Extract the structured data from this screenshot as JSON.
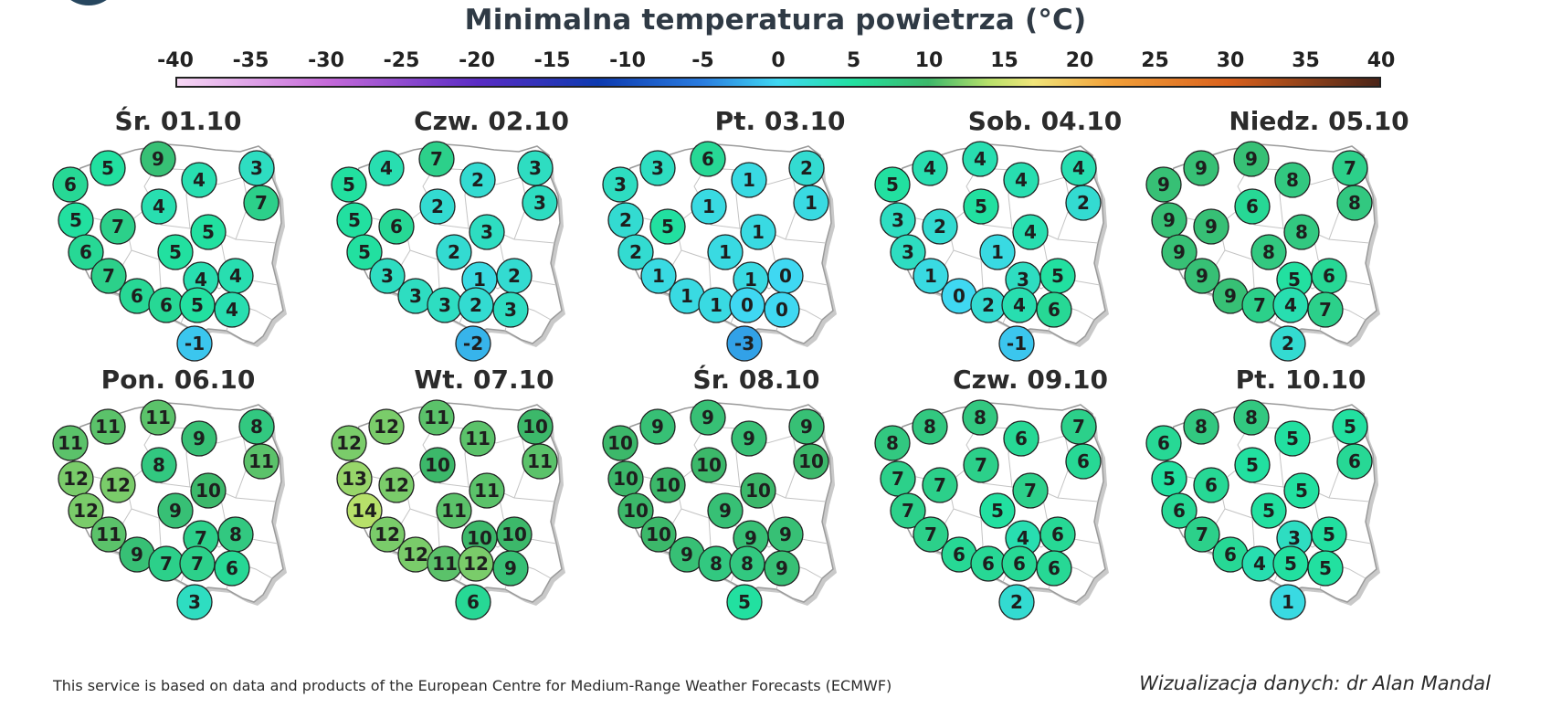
{
  "title": "Minimalna temperatura powietrza (°C)",
  "colorbar": {
    "ticks": [
      "-40",
      "-35",
      "-30",
      "-25",
      "-20",
      "-15",
      "-10",
      "-5",
      "0",
      "5",
      "10",
      "15",
      "20",
      "25",
      "30",
      "35",
      "40"
    ],
    "min": -40,
    "max": 40,
    "stops": [
      {
        "v": -40,
        "c": "#f7d8f5"
      },
      {
        "v": -30,
        "c": "#c56ad9"
      },
      {
        "v": -20,
        "c": "#5a2cc4"
      },
      {
        "v": -12,
        "c": "#0d3ab0"
      },
      {
        "v": -5,
        "c": "#2a7de0"
      },
      {
        "v": 0,
        "c": "#3fd8f2"
      },
      {
        "v": 5,
        "c": "#22e0a0"
      },
      {
        "v": 10,
        "c": "#3cb86a"
      },
      {
        "v": 14,
        "c": "#b7e06a"
      },
      {
        "v": 17,
        "c": "#f1e57a"
      },
      {
        "v": 22,
        "c": "#f2a23a"
      },
      {
        "v": 30,
        "c": "#d9601c"
      },
      {
        "v": 40,
        "c": "#4a2418"
      }
    ]
  },
  "days": [
    {
      "label": "Śr. 01.10",
      "values": [
        5,
        9,
        4,
        3,
        6,
        7,
        4,
        5,
        7,
        5,
        6,
        5,
        4,
        4,
        7,
        6,
        6,
        5,
        4,
        -1
      ]
    },
    {
      "label": "Czw. 02.10",
      "values": [
        4,
        7,
        2,
        3,
        5,
        3,
        2,
        5,
        6,
        3,
        5,
        2,
        1,
        2,
        3,
        3,
        3,
        2,
        3,
        -2
      ]
    },
    {
      "label": "Pt. 03.10",
      "values": [
        3,
        6,
        1,
        2,
        3,
        1,
        1,
        2,
        5,
        1,
        2,
        1,
        1,
        0,
        1,
        1,
        1,
        0,
        0,
        -3
      ]
    },
    {
      "label": "Sob. 04.10",
      "values": [
        4,
        4,
        4,
        4,
        5,
        2,
        5,
        3,
        2,
        4,
        3,
        1,
        3,
        5,
        1,
        0,
        2,
        4,
        6,
        -1
      ]
    },
    {
      "label": "Niedz. 05.10",
      "values": [
        9,
        9,
        8,
        7,
        9,
        8,
        6,
        9,
        9,
        8,
        9,
        8,
        5,
        6,
        9,
        9,
        7,
        4,
        7,
        2
      ]
    },
    {
      "label": "Pon. 06.10",
      "values": [
        11,
        11,
        9,
        8,
        11,
        11,
        8,
        12,
        12,
        10,
        12,
        9,
        7,
        8,
        11,
        9,
        7,
        7,
        6,
        3
      ]
    },
    {
      "label": "Wt. 07.10",
      "values": [
        12,
        11,
        11,
        10,
        12,
        11,
        10,
        13,
        12,
        11,
        14,
        11,
        10,
        10,
        12,
        12,
        11,
        12,
        9,
        6
      ]
    },
    {
      "label": "Śr. 08.10",
      "values": [
        9,
        9,
        9,
        9,
        10,
        10,
        10,
        10,
        10,
        10,
        10,
        9,
        9,
        9,
        10,
        9,
        8,
        8,
        9,
        5
      ]
    },
    {
      "label": "Czw. 09.10",
      "values": [
        8,
        8,
        6,
        7,
        8,
        6,
        7,
        7,
        7,
        7,
        7,
        5,
        4,
        6,
        7,
        6,
        6,
        6,
        6,
        2
      ]
    },
    {
      "label": "Pt. 10.10",
      "values": [
        8,
        8,
        5,
        5,
        6,
        6,
        5,
        5,
        6,
        5,
        6,
        5,
        3,
        5,
        7,
        6,
        4,
        5,
        5,
        1
      ]
    }
  ],
  "footer": {
    "source": "This service is based on data and products of the European Centre for Medium-Range Weather Forecasts (ECMWF)",
    "credit": "Wizualizacja danych: dr Alan Mandal"
  }
}
